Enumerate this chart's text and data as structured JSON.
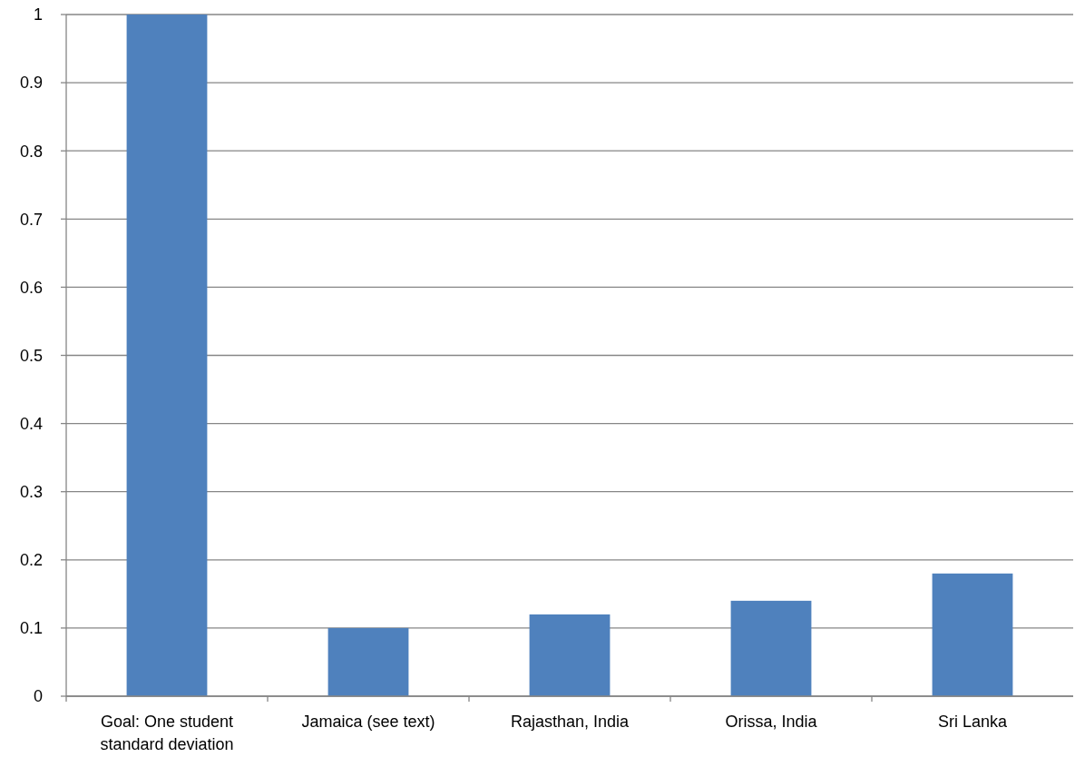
{
  "chart_data": {
    "type": "bar",
    "categories": [
      "Goal: One student standard deviation",
      "Jamaica (see text)",
      "Rajasthan, India",
      "Orissa, India",
      "Sri Lanka"
    ],
    "values": [
      1,
      0.1,
      0.12,
      0.14,
      0.18
    ],
    "color": "#4f81bd",
    "ylim": [
      0,
      1
    ],
    "yticks": [
      0,
      0.1,
      0.2,
      0.3,
      0.4,
      0.5,
      0.6,
      0.7,
      0.8,
      0.9,
      1
    ],
    "grid": "y"
  }
}
